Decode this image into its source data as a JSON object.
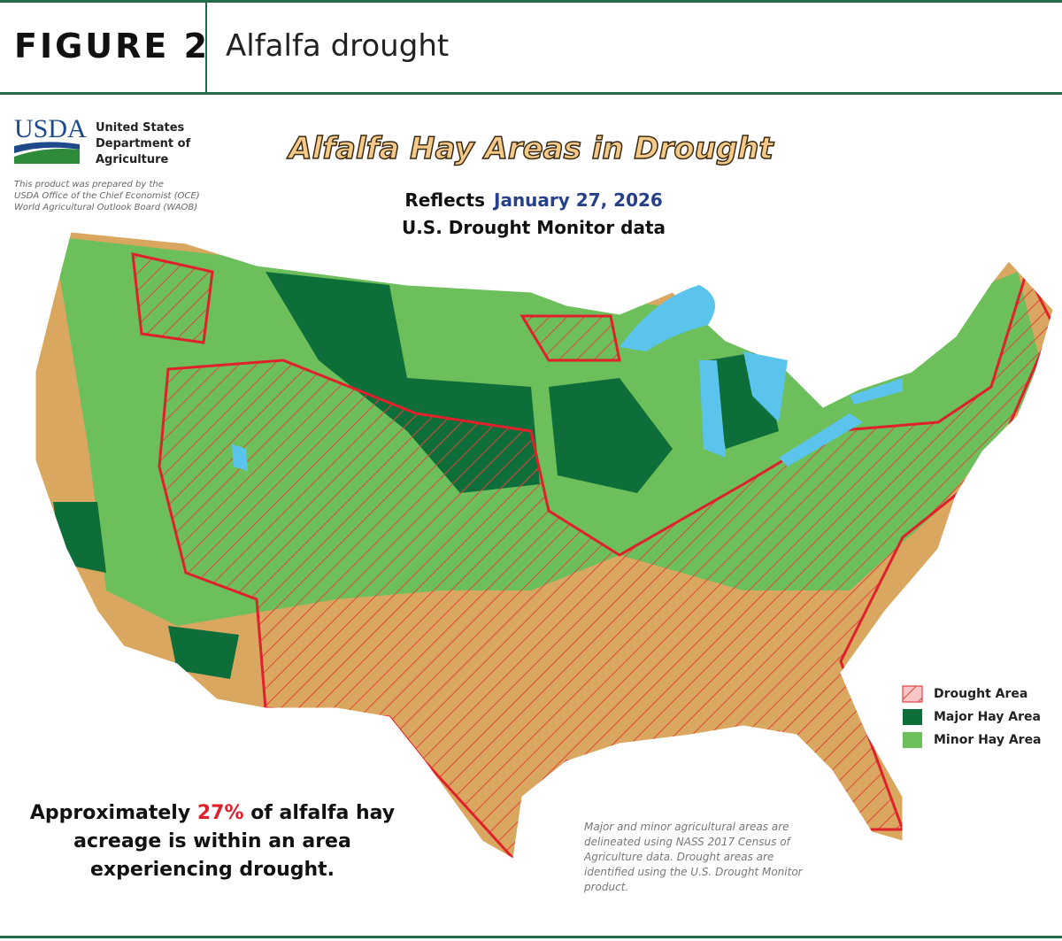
{
  "header": {
    "figure_label": "FIGURE 2",
    "title": "Alfalfa drought"
  },
  "agency": {
    "logo": "USDA",
    "name_lines": [
      "United States",
      "Department of",
      "Agriculture"
    ]
  },
  "credit_lines": [
    "This product was prepared by the",
    "USDA Office of the Chief Economist (OCE)",
    "World Agricultural Outlook Board (WAOB)"
  ],
  "map": {
    "title": "Alfalfa Hay Areas in Drought",
    "subtitle_prefix": "Reflects",
    "date": "January 27, 2026",
    "subtitle_line2": "U.S. Drought Monitor data",
    "legend": [
      "Drought Area",
      "Major Hay Area",
      "Minor Hay Area"
    ]
  },
  "summary": {
    "prefix": "Approximately",
    "highlight": "27%",
    "suffix": "of alfalfa hay",
    "lines": [
      "acreage is within an area",
      "experiencing drought."
    ]
  },
  "note_lines": [
    "Major and minor agricultural areas are",
    "delineated using NASS 2017 Census of",
    "Agriculture data.  Drought areas are",
    "identified using the U.S. Drought Monitor",
    "product."
  ]
}
